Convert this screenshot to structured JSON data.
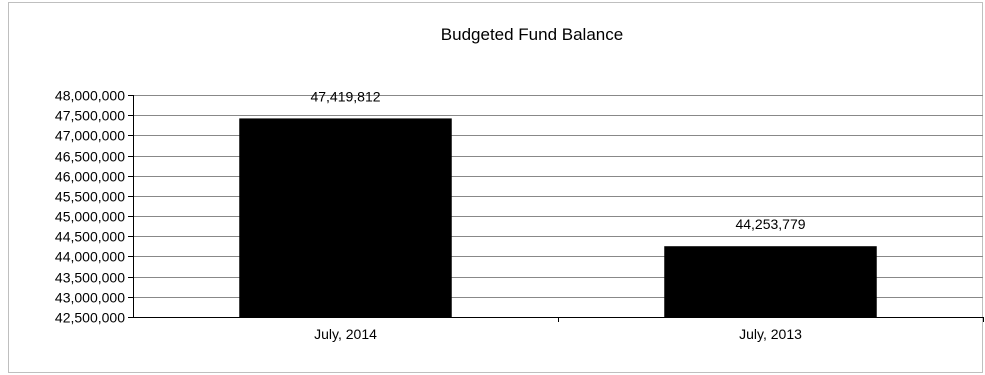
{
  "chart_data": {
    "type": "bar",
    "title": "Budgeted Fund Balance",
    "xlabel": "",
    "ylabel": "",
    "categories": [
      "July, 2014",
      "July, 2013"
    ],
    "values": [
      47419812,
      44253779
    ],
    "data_labels": [
      "47,419,812",
      "44,253,779"
    ],
    "ylim": [
      42500000,
      48000000
    ],
    "y_ticks": [
      42500000,
      43000000,
      43500000,
      44000000,
      44500000,
      45000000,
      45500000,
      46000000,
      46500000,
      47000000,
      47500000,
      48000000
    ],
    "y_tick_labels": [
      "42,500,000",
      "43,000,000",
      "43,500,000",
      "44,000,000",
      "44,500,000",
      "45,000,000",
      "45,500,000",
      "46,000,000",
      "46,500,000",
      "47,000,000",
      "47,500,000",
      "48,000,000"
    ],
    "grid": true,
    "legend": "none",
    "bar_color": "#000000",
    "grid_color": "#888888"
  }
}
